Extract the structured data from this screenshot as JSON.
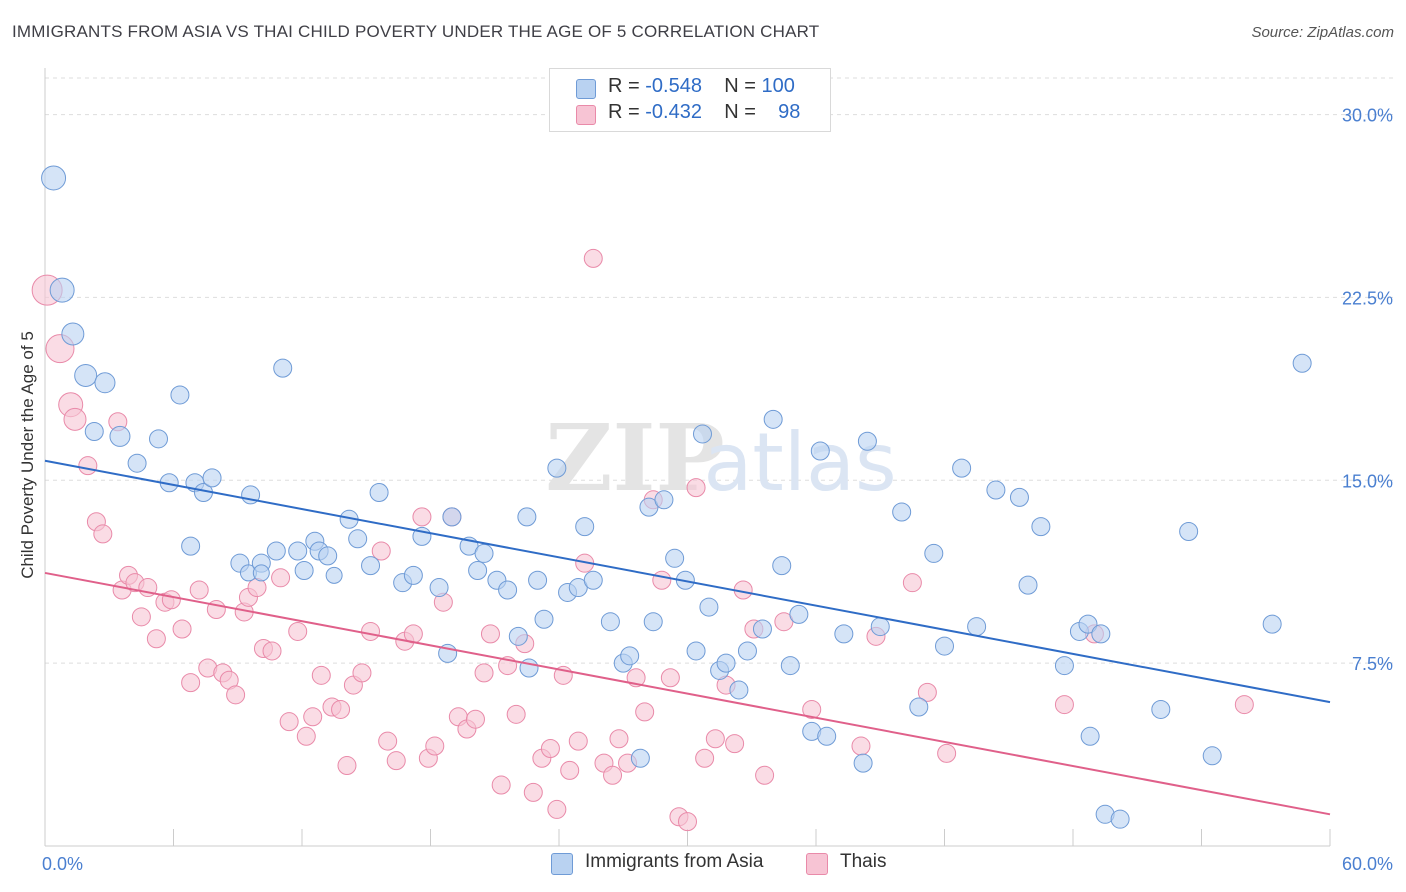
{
  "title": "IMMIGRANTS FROM ASIA VS THAI CHILD POVERTY UNDER THE AGE OF 5 CORRELATION CHART",
  "source": "Source: ZipAtlas.com",
  "watermark": {
    "zip": "ZIP",
    "atlas": "atlas"
  },
  "legend_stats": {
    "blue": {
      "r_label": "R = ",
      "r_value": "-0.548",
      "n_label": "N = ",
      "n_value": "100"
    },
    "pink": {
      "r_label": "R = ",
      "r_value": "-0.432",
      "n_label": "N = ",
      "n_value": "98"
    }
  },
  "colors": {
    "blue_fill": "#b9d2f1",
    "blue_stroke": "#6f9bd6",
    "blue_line": "#2f6cc6",
    "pink_fill": "#f7c4d4",
    "pink_stroke": "#e98aa9",
    "pink_line": "#e0608a",
    "axis_text": "#4a7fd0",
    "grid": "#dddddd"
  },
  "chart_data": {
    "type": "scatter",
    "xlabel": "",
    "ylabel": "Child Poverty Under the Age of 5",
    "xlim": [
      0,
      60
    ],
    "ylim": [
      0,
      31.5
    ],
    "x_tick_labels": [
      {
        "value": 0,
        "label": "0.0%"
      },
      {
        "value": 60,
        "label": "60.0%"
      }
    ],
    "y_tick_labels": [
      {
        "value": 7.5,
        "label": "7.5%"
      },
      {
        "value": 15,
        "label": "15.0%"
      },
      {
        "value": 22.5,
        "label": "22.5%"
      },
      {
        "value": 30,
        "label": "30.0%"
      }
    ],
    "series": [
      {
        "name": "Immigrants from Asia",
        "color": "blue",
        "trend": {
          "x": [
            0,
            60
          ],
          "y": [
            15.8,
            5.9
          ]
        },
        "points": [
          [
            0.4,
            27.4,
            10
          ],
          [
            0.8,
            22.8,
            10
          ],
          [
            1.3,
            21.0,
            9
          ],
          [
            1.9,
            19.3,
            9
          ],
          [
            2.8,
            19.0,
            8
          ],
          [
            2.3,
            17.0,
            7
          ],
          [
            3.5,
            16.8,
            8
          ],
          [
            5.3,
            16.7,
            7
          ],
          [
            4.3,
            15.7,
            7
          ],
          [
            5.8,
            14.9,
            7
          ],
          [
            6.3,
            18.5,
            7
          ],
          [
            7.0,
            14.9,
            7
          ],
          [
            7.4,
            14.5,
            7
          ],
          [
            7.8,
            15.1,
            7
          ],
          [
            6.8,
            12.3,
            7
          ],
          [
            9.1,
            11.6,
            7
          ],
          [
            9.5,
            11.2,
            6
          ],
          [
            10.1,
            11.6,
            7
          ],
          [
            9.6,
            14.4,
            7
          ],
          [
            10.1,
            11.2,
            6
          ],
          [
            10.8,
            12.1,
            7
          ],
          [
            11.1,
            19.6,
            7
          ],
          [
            11.8,
            12.1,
            7
          ],
          [
            12.1,
            11.3,
            7
          ],
          [
            12.6,
            12.5,
            7
          ],
          [
            12.8,
            12.1,
            7
          ],
          [
            13.2,
            11.9,
            7
          ],
          [
            13.5,
            11.1,
            6
          ],
          [
            14.2,
            13.4,
            7
          ],
          [
            14.6,
            12.6,
            7
          ],
          [
            15.2,
            11.5,
            7
          ],
          [
            15.6,
            14.5,
            7
          ],
          [
            16.7,
            10.8,
            7
          ],
          [
            17.2,
            11.1,
            7
          ],
          [
            17.6,
            12.7,
            7
          ],
          [
            18.4,
            10.6,
            7
          ],
          [
            19.0,
            13.5,
            7
          ],
          [
            18.8,
            7.9,
            7
          ],
          [
            19.8,
            12.3,
            7
          ],
          [
            20.2,
            11.3,
            7
          ],
          [
            20.5,
            12.0,
            7
          ],
          [
            21.1,
            10.9,
            7
          ],
          [
            21.6,
            10.5,
            7
          ],
          [
            22.1,
            8.6,
            7
          ],
          [
            22.5,
            13.5,
            7
          ],
          [
            22.6,
            7.3,
            7
          ],
          [
            23.0,
            10.9,
            7
          ],
          [
            23.3,
            9.3,
            7
          ],
          [
            23.9,
            15.5,
            7
          ],
          [
            24.4,
            10.4,
            7
          ],
          [
            24.9,
            10.6,
            7
          ],
          [
            25.2,
            13.1,
            7
          ],
          [
            25.6,
            10.9,
            7
          ],
          [
            26.4,
            9.2,
            7
          ],
          [
            27.0,
            7.5,
            7
          ],
          [
            27.3,
            7.8,
            7
          ],
          [
            27.8,
            3.6,
            7
          ],
          [
            28.2,
            13.9,
            7
          ],
          [
            28.4,
            9.2,
            7
          ],
          [
            28.9,
            14.2,
            7
          ],
          [
            29.4,
            11.8,
            7
          ],
          [
            29.9,
            10.9,
            7
          ],
          [
            30.4,
            8.0,
            7
          ],
          [
            30.7,
            16.9,
            7
          ],
          [
            31.0,
            9.8,
            7
          ],
          [
            31.5,
            7.2,
            7
          ],
          [
            31.8,
            7.5,
            7
          ],
          [
            32.4,
            6.4,
            7
          ],
          [
            32.8,
            8.0,
            7
          ],
          [
            33.5,
            8.9,
            7
          ],
          [
            34.0,
            17.5,
            7
          ],
          [
            34.4,
            11.5,
            7
          ],
          [
            34.8,
            7.4,
            7
          ],
          [
            35.2,
            9.5,
            7
          ],
          [
            36.2,
            16.2,
            7
          ],
          [
            35.8,
            4.7,
            7
          ],
          [
            36.5,
            4.5,
            7
          ],
          [
            37.3,
            8.7,
            7
          ],
          [
            38.4,
            16.6,
            7
          ],
          [
            38.2,
            3.4,
            7
          ],
          [
            39.0,
            9.0,
            7
          ],
          [
            40.0,
            13.7,
            7
          ],
          [
            40.8,
            5.7,
            7
          ],
          [
            41.5,
            12.0,
            7
          ],
          [
            42.0,
            8.2,
            7
          ],
          [
            42.8,
            15.5,
            7
          ],
          [
            43.5,
            9.0,
            7
          ],
          [
            44.4,
            14.6,
            7
          ],
          [
            45.5,
            14.3,
            7
          ],
          [
            45.9,
            10.7,
            7
          ],
          [
            46.5,
            13.1,
            7
          ],
          [
            47.6,
            7.4,
            7
          ],
          [
            48.3,
            8.8,
            7
          ],
          [
            48.7,
            9.1,
            7
          ],
          [
            49.3,
            8.7,
            7
          ],
          [
            48.8,
            4.5,
            7
          ],
          [
            49.5,
            1.3,
            7
          ],
          [
            50.2,
            1.1,
            7
          ],
          [
            52.1,
            5.6,
            7
          ],
          [
            53.4,
            12.9,
            7
          ],
          [
            54.5,
            3.7,
            7
          ],
          [
            57.3,
            9.1,
            7
          ],
          [
            58.7,
            19.8,
            7
          ]
        ]
      },
      {
        "name": "Thais",
        "color": "pink",
        "trend": {
          "x": [
            0,
            60
          ],
          "y": [
            11.2,
            1.3
          ]
        },
        "points": [
          [
            0.1,
            22.8,
            13
          ],
          [
            0.7,
            20.4,
            12
          ],
          [
            1.2,
            18.1,
            10
          ],
          [
            1.4,
            17.5,
            9
          ],
          [
            2.0,
            15.6,
            7
          ],
          [
            2.4,
            13.3,
            7
          ],
          [
            2.7,
            12.8,
            7
          ],
          [
            3.4,
            17.4,
            7
          ],
          [
            3.6,
            10.5,
            7
          ],
          [
            3.9,
            11.1,
            7
          ],
          [
            4.2,
            10.8,
            7
          ],
          [
            4.5,
            9.4,
            7
          ],
          [
            4.8,
            10.6,
            7
          ],
          [
            5.2,
            8.5,
            7
          ],
          [
            5.6,
            10.0,
            7
          ],
          [
            5.9,
            10.1,
            7
          ],
          [
            6.4,
            8.9,
            7
          ],
          [
            6.8,
            6.7,
            7
          ],
          [
            7.2,
            10.5,
            7
          ],
          [
            7.6,
            7.3,
            7
          ],
          [
            8.0,
            9.7,
            7
          ],
          [
            8.3,
            7.1,
            7
          ],
          [
            8.6,
            6.8,
            7
          ],
          [
            8.9,
            6.2,
            7
          ],
          [
            9.3,
            9.6,
            7
          ],
          [
            9.5,
            10.2,
            7
          ],
          [
            9.9,
            10.6,
            7
          ],
          [
            10.2,
            8.1,
            7
          ],
          [
            10.6,
            8.0,
            7
          ],
          [
            11.0,
            11.0,
            7
          ],
          [
            11.4,
            5.1,
            7
          ],
          [
            11.8,
            8.8,
            7
          ],
          [
            12.2,
            4.5,
            7
          ],
          [
            12.5,
            5.3,
            7
          ],
          [
            12.9,
            7.0,
            7
          ],
          [
            13.4,
            5.7,
            7
          ],
          [
            13.8,
            5.6,
            7
          ],
          [
            14.1,
            3.3,
            7
          ],
          [
            14.4,
            6.6,
            7
          ],
          [
            14.8,
            7.1,
            7
          ],
          [
            15.2,
            8.8,
            7
          ],
          [
            15.7,
            12.1,
            7
          ],
          [
            16.0,
            4.3,
            7
          ],
          [
            16.4,
            3.5,
            7
          ],
          [
            16.8,
            8.4,
            7
          ],
          [
            17.2,
            8.7,
            7
          ],
          [
            17.6,
            13.5,
            7
          ],
          [
            17.9,
            3.6,
            7
          ],
          [
            18.2,
            4.1,
            7
          ],
          [
            18.6,
            10.0,
            7
          ],
          [
            19.0,
            13.5,
            7
          ],
          [
            19.3,
            5.3,
            7
          ],
          [
            19.7,
            4.8,
            7
          ],
          [
            20.1,
            5.2,
            7
          ],
          [
            20.5,
            7.1,
            7
          ],
          [
            20.8,
            8.7,
            7
          ],
          [
            21.3,
            2.5,
            7
          ],
          [
            21.6,
            7.4,
            7
          ],
          [
            22.0,
            5.4,
            7
          ],
          [
            22.4,
            8.3,
            7
          ],
          [
            22.8,
            2.2,
            7
          ],
          [
            23.2,
            3.6,
            7
          ],
          [
            23.6,
            4.0,
            7
          ],
          [
            23.9,
            1.5,
            7
          ],
          [
            24.2,
            7.0,
            7
          ],
          [
            24.5,
            3.1,
            7
          ],
          [
            24.9,
            4.3,
            7
          ],
          [
            25.2,
            11.6,
            7
          ],
          [
            25.6,
            24.1,
            7
          ],
          [
            26.1,
            3.4,
            7
          ],
          [
            26.5,
            2.9,
            7
          ],
          [
            26.8,
            4.4,
            7
          ],
          [
            27.2,
            3.4,
            7
          ],
          [
            27.6,
            6.9,
            7
          ],
          [
            28.0,
            5.5,
            7
          ],
          [
            28.4,
            14.2,
            7
          ],
          [
            28.8,
            10.9,
            7
          ],
          [
            29.2,
            6.9,
            7
          ],
          [
            29.6,
            1.2,
            7
          ],
          [
            30.0,
            1.0,
            7
          ],
          [
            30.4,
            14.7,
            7
          ],
          [
            30.8,
            3.6,
            7
          ],
          [
            31.3,
            4.4,
            7
          ],
          [
            31.8,
            6.6,
            7
          ],
          [
            32.2,
            4.2,
            7
          ],
          [
            32.6,
            10.5,
            7
          ],
          [
            33.1,
            8.9,
            7
          ],
          [
            33.6,
            2.9,
            7
          ],
          [
            34.5,
            9.2,
            7
          ],
          [
            35.8,
            5.6,
            7
          ],
          [
            38.1,
            4.1,
            7
          ],
          [
            38.8,
            8.6,
            7
          ],
          [
            40.5,
            10.8,
            7
          ],
          [
            41.2,
            6.3,
            7
          ],
          [
            42.1,
            3.8,
            7
          ],
          [
            47.6,
            5.8,
            7
          ],
          [
            49.0,
            8.7,
            7
          ],
          [
            56.0,
            5.8,
            7
          ]
        ]
      }
    ]
  }
}
